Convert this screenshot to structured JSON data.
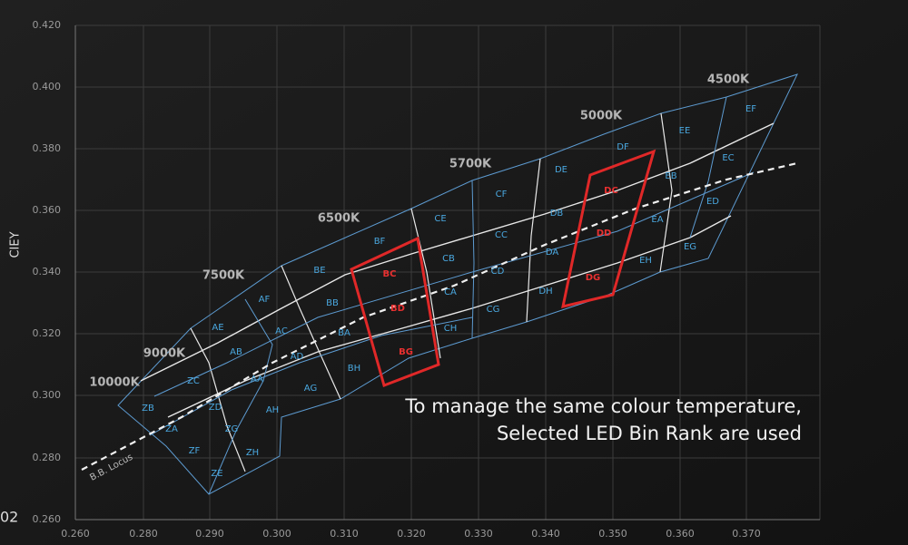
{
  "axes": {
    "y_label": "CIEY",
    "x_ticks": [
      "0.260",
      "0.280",
      "0.290",
      "0.300",
      "0.310",
      "0.320",
      "0.330",
      "0.340",
      "0.350",
      "0.360",
      "0.370"
    ],
    "y_ticks": [
      "0.420",
      "0.400",
      "0.380",
      "0.360",
      "0.340",
      "0.320",
      "0.300",
      "0.280",
      "0.260"
    ]
  },
  "cct_labels": [
    "10000K",
    "9000K",
    "7500K",
    "6500K",
    "5700K",
    "5000K",
    "4500K"
  ],
  "bins": [
    {
      "label": "ZB",
      "selected": false
    },
    {
      "label": "ZA",
      "selected": false
    },
    {
      "label": "ZF",
      "selected": false
    },
    {
      "label": "ZE",
      "selected": false
    },
    {
      "label": "ZC",
      "selected": false
    },
    {
      "label": "ZD",
      "selected": false
    },
    {
      "label": "ZG",
      "selected": false
    },
    {
      "label": "ZH",
      "selected": false
    },
    {
      "label": "AE",
      "selected": false
    },
    {
      "label": "AB",
      "selected": false
    },
    {
      "label": "AA",
      "selected": false
    },
    {
      "label": "AH",
      "selected": false
    },
    {
      "label": "AF",
      "selected": false
    },
    {
      "label": "AC",
      "selected": false
    },
    {
      "label": "AD",
      "selected": false
    },
    {
      "label": "AG",
      "selected": false
    },
    {
      "label": "BE",
      "selected": false
    },
    {
      "label": "BB",
      "selected": false
    },
    {
      "label": "BA",
      "selected": false
    },
    {
      "label": "BH",
      "selected": false
    },
    {
      "label": "BC",
      "selected": true
    },
    {
      "label": "BD",
      "selected": true
    },
    {
      "label": "BG",
      "selected": true
    },
    {
      "label": "BF",
      "selected": false
    },
    {
      "label": "CB",
      "selected": false
    },
    {
      "label": "CA",
      "selected": false
    },
    {
      "label": "CH",
      "selected": false
    },
    {
      "label": "CE",
      "selected": false
    },
    {
      "label": "CC",
      "selected": false
    },
    {
      "label": "CD",
      "selected": false
    },
    {
      "label": "CG",
      "selected": false
    },
    {
      "label": "CF",
      "selected": false
    },
    {
      "label": "DE",
      "selected": false
    },
    {
      "label": "DB",
      "selected": false
    },
    {
      "label": "DA",
      "selected": false
    },
    {
      "label": "DH",
      "selected": false
    },
    {
      "label": "DF",
      "selected": false
    },
    {
      "label": "DC",
      "selected": true
    },
    {
      "label": "DD",
      "selected": true
    },
    {
      "label": "DG",
      "selected": true
    },
    {
      "label": "EE",
      "selected": false
    },
    {
      "label": "EB",
      "selected": false
    },
    {
      "label": "EA",
      "selected": false
    },
    {
      "label": "EH",
      "selected": false
    },
    {
      "label": "EF",
      "selected": false
    },
    {
      "label": "EC",
      "selected": false
    },
    {
      "label": "ED",
      "selected": false
    },
    {
      "label": "EG",
      "selected": false
    }
  ],
  "locus_label": "B.B. Locus",
  "annotation": [
    "To manage the same colour temperature,",
    "Selected LED Bin Rank are used"
  ],
  "page_number": "02"
}
